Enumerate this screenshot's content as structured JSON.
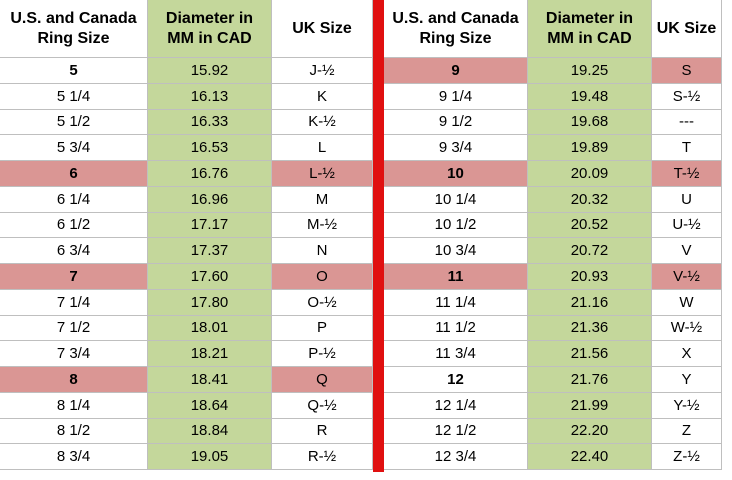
{
  "tables": [
    {
      "header": [
        "U.S. and Canada Ring Size",
        "Diameter in MM in CAD",
        "UK Size"
      ],
      "rows": [
        [
          "5",
          "15.92",
          "J-½"
        ],
        [
          "5 1/4",
          "16.13",
          "K"
        ],
        [
          "5 1/2",
          "16.33",
          "K-½"
        ],
        [
          "5 3/4",
          "16.53",
          "L"
        ],
        [
          "6",
          "16.76",
          "L-½"
        ],
        [
          "6 1/4",
          "16.96",
          "M"
        ],
        [
          "6 1/2",
          "17.17",
          "M-½"
        ],
        [
          "6 3/4",
          "17.37",
          "N"
        ],
        [
          "7",
          "17.60",
          "O"
        ],
        [
          "7 1/4",
          "17.80",
          "O-½"
        ],
        [
          "7 1/2",
          "18.01",
          "P"
        ],
        [
          "7 3/4",
          "18.21",
          "P-½"
        ],
        [
          "8",
          "18.41",
          "Q"
        ],
        [
          "8 1/4",
          "18.64",
          "Q-½"
        ],
        [
          "8 1/2",
          "18.84",
          "R"
        ],
        [
          "8 3/4",
          "19.05",
          "R-½"
        ]
      ]
    },
    {
      "header": [
        "U.S. and Canada Ring Size",
        "Diameter in MM in CAD",
        "UK Size"
      ],
      "rows": [
        [
          "9",
          "19.25",
          "S"
        ],
        [
          "9 1/4",
          "19.48",
          "S-½"
        ],
        [
          "9 1/2",
          "19.68",
          "---"
        ],
        [
          "9 3/4",
          "19.89",
          "T"
        ],
        [
          "10",
          "20.09",
          "T-½"
        ],
        [
          "10 1/4",
          "20.32",
          "U"
        ],
        [
          "10 1/2",
          "20.52",
          "U-½"
        ],
        [
          "10 3/4",
          "20.72",
          "V"
        ],
        [
          "11",
          "20.93",
          "V-½"
        ],
        [
          "11 1/4",
          "21.16",
          "W"
        ],
        [
          "11 1/2",
          "21.36",
          "W-½"
        ],
        [
          "11 3/4",
          "21.56",
          "X"
        ],
        [
          "12",
          "21.76",
          "Y"
        ],
        [
          "12 1/4",
          "21.99",
          "Y-½"
        ],
        [
          "12 1/2",
          "22.20",
          "Z"
        ],
        [
          "12 3/4",
          "22.40",
          "Z-½"
        ]
      ]
    }
  ]
}
